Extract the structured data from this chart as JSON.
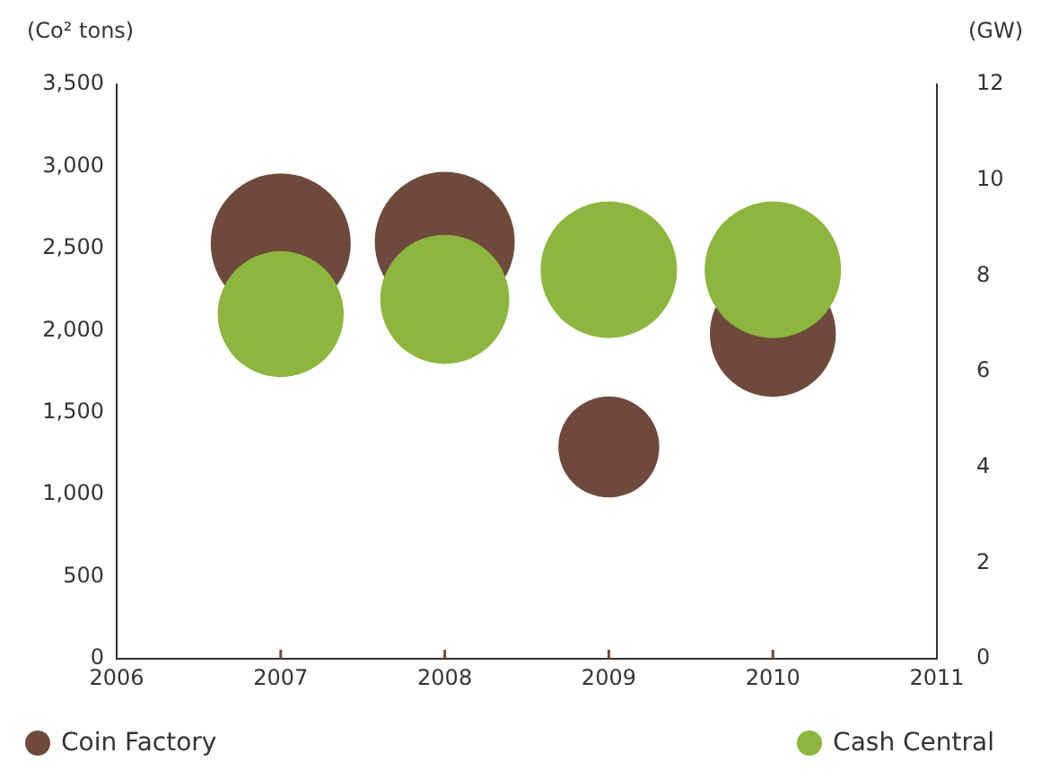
{
  "chart_data": {
    "type": "bubble",
    "ylabel": "(Co² tons)",
    "y2label": "(GW)",
    "x": [
      2007,
      2008,
      2009,
      2010
    ],
    "xlim": [
      2006,
      2011
    ],
    "xticks": [
      2006,
      2007,
      2008,
      2009,
      2010,
      2011
    ],
    "ylim": [
      0,
      3500
    ],
    "yticks": [
      0,
      500,
      {
        "value": 1000,
        "label": "1,000"
      },
      {
        "value": 1500,
        "label": "1,500"
      },
      {
        "value": 2000,
        "label": "2,000"
      },
      {
        "value": 2500,
        "label": "2,500"
      },
      {
        "value": 3000,
        "label": "3,000"
      },
      {
        "value": 3500,
        "label": "3,500"
      }
    ],
    "y2lim": [
      0,
      12
    ],
    "y2ticks": [
      0,
      2,
      4,
      6,
      8,
      10,
      12
    ],
    "series": [
      {
        "name": "Coin Factory",
        "color": "#6d4a3c",
        "values": [
          2530,
          2540,
          1290,
          1980
        ],
        "sizes": [
          1,
          1,
          0.52,
          0.81
        ]
      },
      {
        "name": "Cash Central",
        "color": "#8db53f",
        "values": [
          2100,
          2190,
          2370,
          2370
        ],
        "sizes": [
          0.81,
          0.85,
          0.95,
          0.95
        ]
      }
    ],
    "grid": false,
    "legend": "bottom"
  }
}
